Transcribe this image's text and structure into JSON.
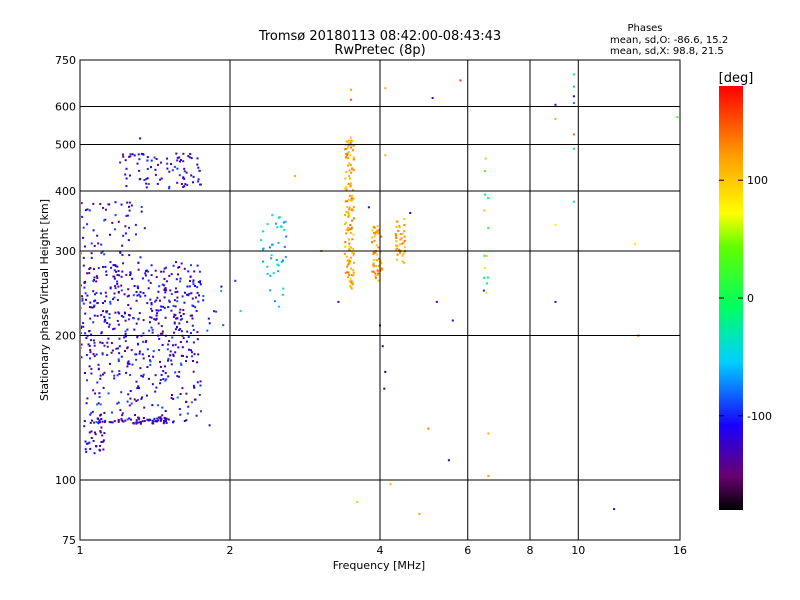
{
  "chart_data": {
    "type": "scatter",
    "title": "Tromsø 20180113 08:42:00-08:43:43",
    "subtitle": "RwPretec (8p)",
    "xlabel": "Frequency [MHz]",
    "ylabel": "Stationary phase Virtual Height [km]",
    "x_scale": "log",
    "y_scale": "log",
    "xlim": [
      1,
      16
    ],
    "ylim": [
      75,
      750
    ],
    "x_ticks": [
      1,
      2,
      4,
      6,
      8,
      10,
      16
    ],
    "x_tick_labels": [
      "1",
      "2",
      "4",
      "6",
      "8",
      "10",
      "16"
    ],
    "y_ticks": [
      75,
      100,
      200,
      300,
      400,
      500,
      600,
      750
    ],
    "y_tick_labels": [
      "75",
      "100",
      "200",
      "300",
      "400",
      "500",
      "600",
      "750"
    ],
    "grid": true,
    "stats": {
      "header": "Phases",
      "line_o": "mean, sd,O:  -86.6,  15.2",
      "line_x": "mean, sd,X:   98.8,  21.5"
    },
    "colorbar": {
      "label": "[deg]",
      "range": [
        -180,
        180
      ],
      "ticks": [
        -100,
        0,
        100
      ],
      "tick_labels": [
        "-100",
        "0",
        "100"
      ]
    },
    "point_groups": [
      {
        "freq_range": [
          1.0,
          1.12
        ],
        "height_range": [
          112,
          132
        ],
        "phase_range": [
          -150,
          -100
        ],
        "count": 30
      },
      {
        "freq_range": [
          1.0,
          1.75
        ],
        "height_range": [
          180,
          285
        ],
        "phase_range": [
          -150,
          -90
        ],
        "count": 420
      },
      {
        "freq_range": [
          1.02,
          1.75
        ],
        "height_range": [
          132,
          180
        ],
        "phase_range": [
          -150,
          -80
        ],
        "count": 160
      },
      {
        "freq_range": [
          1.05,
          1.55
        ],
        "height_range": [
          131,
          135
        ],
        "phase_range": [
          -150,
          -100
        ],
        "count": 70
      },
      {
        "freq_range": [
          1.0,
          1.35
        ],
        "height_range": [
          290,
          380
        ],
        "phase_range": [
          -150,
          -90
        ],
        "count": 60
      },
      {
        "freq_range": [
          1.2,
          1.75
        ],
        "height_range": [
          405,
          480
        ],
        "phase_range": [
          -150,
          -90
        ],
        "count": 90
      },
      {
        "freq_range": [
          1.75,
          1.95
        ],
        "height_range": [
          200,
          260
        ],
        "phase_range": [
          -130,
          -60
        ],
        "count": 10
      },
      {
        "freq_range": [
          2.3,
          2.6
        ],
        "height_range": [
          228,
          360
        ],
        "phase_range": [
          -80,
          -30
        ],
        "count": 40
      },
      {
        "freq_range": [
          3.4,
          3.55
        ],
        "height_range": [
          250,
          520
        ],
        "phase_range": [
          90,
          140
        ],
        "count": 140
      },
      {
        "freq_range": [
          3.85,
          4.05
        ],
        "height_range": [
          260,
          340
        ],
        "phase_range": [
          90,
          140
        ],
        "count": 55
      },
      {
        "freq_range": [
          4.3,
          4.5
        ],
        "height_range": [
          280,
          350
        ],
        "phase_range": [
          90,
          140
        ],
        "count": 40
      },
      {
        "freq_range": [
          6.45,
          6.6
        ],
        "height_range": [
          240,
          500
        ],
        "phase_range": [
          -120,
          110
        ],
        "count": 14
      }
    ],
    "isolated_points": [
      {
        "x": 1.32,
        "y": 515,
        "phase": -120
      },
      {
        "x": 1.82,
        "y": 130,
        "phase": -120
      },
      {
        "x": 2.05,
        "y": 260,
        "phase": -100
      },
      {
        "x": 2.1,
        "y": 225,
        "phase": -40
      },
      {
        "x": 2.7,
        "y": 430,
        "phase": 110
      },
      {
        "x": 3.05,
        "y": 300,
        "phase": 140
      },
      {
        "x": 3.3,
        "y": 235,
        "phase": -130
      },
      {
        "x": 3.5,
        "y": 650,
        "phase": 120
      },
      {
        "x": 3.5,
        "y": 620,
        "phase": 150
      },
      {
        "x": 3.6,
        "y": 90,
        "phase": 50
      },
      {
        "x": 3.8,
        "y": 370,
        "phase": -120
      },
      {
        "x": 4.0,
        "y": 210,
        "phase": -150
      },
      {
        "x": 4.05,
        "y": 190,
        "phase": -160
      },
      {
        "x": 4.08,
        "y": 155,
        "phase": -160
      },
      {
        "x": 4.1,
        "y": 168,
        "phase": -170
      },
      {
        "x": 4.1,
        "y": 655,
        "phase": 110
      },
      {
        "x": 4.1,
        "y": 475,
        "phase": 110
      },
      {
        "x": 4.2,
        "y": 98,
        "phase": 110
      },
      {
        "x": 4.6,
        "y": 360,
        "phase": -130
      },
      {
        "x": 4.8,
        "y": 85,
        "phase": 120
      },
      {
        "x": 5.0,
        "y": 128,
        "phase": 130
      },
      {
        "x": 5.1,
        "y": 625,
        "phase": -120
      },
      {
        "x": 5.2,
        "y": 235,
        "phase": -130
      },
      {
        "x": 5.5,
        "y": 110,
        "phase": -120
      },
      {
        "x": 5.6,
        "y": 215,
        "phase": -120
      },
      {
        "x": 5.8,
        "y": 680,
        "phase": 160
      },
      {
        "x": 6.6,
        "y": 125,
        "phase": 110
      },
      {
        "x": 6.6,
        "y": 102,
        "phase": 120
      },
      {
        "x": 9.0,
        "y": 605,
        "phase": -130
      },
      {
        "x": 9.0,
        "y": 565,
        "phase": 110
      },
      {
        "x": 9.0,
        "y": 340,
        "phase": 80
      },
      {
        "x": 9.0,
        "y": 235,
        "phase": -130
      },
      {
        "x": 9.8,
        "y": 700,
        "phase": -20
      },
      {
        "x": 9.8,
        "y": 660,
        "phase": -60
      },
      {
        "x": 9.8,
        "y": 630,
        "phase": -120
      },
      {
        "x": 9.8,
        "y": 610,
        "phase": -80
      },
      {
        "x": 9.8,
        "y": 525,
        "phase": 140
      },
      {
        "x": 9.8,
        "y": 490,
        "phase": -40
      },
      {
        "x": 9.8,
        "y": 380,
        "phase": -40
      },
      {
        "x": 11.8,
        "y": 87,
        "phase": -120
      },
      {
        "x": 13.0,
        "y": 310,
        "phase": 80
      },
      {
        "x": 13.2,
        "y": 200,
        "phase": 160
      },
      {
        "x": 15.8,
        "y": 570,
        "phase": 20
      }
    ]
  }
}
